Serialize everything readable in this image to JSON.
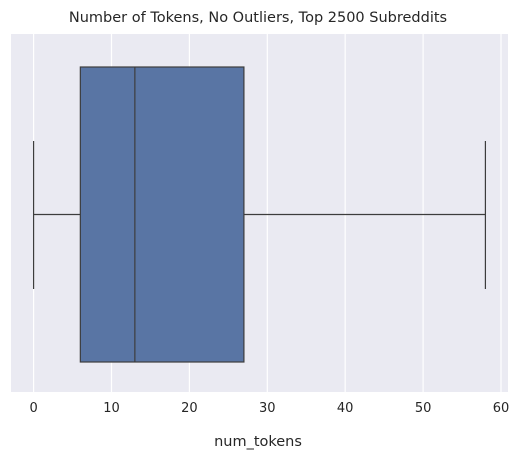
{
  "chart_data": {
    "type": "boxplot",
    "title": "Number of Tokens, No Outliers, Top 2500 Subreddits",
    "xlabel": "num_tokens",
    "ylabel": "",
    "orientation": "horizontal",
    "xlim": [
      -2.9,
      60.9
    ],
    "xticks": [
      0,
      10,
      20,
      30,
      40,
      50,
      60
    ],
    "xtick_labels": [
      "0",
      "10",
      "20",
      "30",
      "40",
      "50",
      "60"
    ],
    "grid": true,
    "box": {
      "whisker_low": 0,
      "q1": 6,
      "median": 13,
      "q3": 27,
      "whisker_high": 58
    },
    "colors": {
      "background": "#eaeaf2",
      "grid": "#ffffff",
      "box_fill": "#5975a4",
      "lines": "#3d3d3d"
    }
  }
}
